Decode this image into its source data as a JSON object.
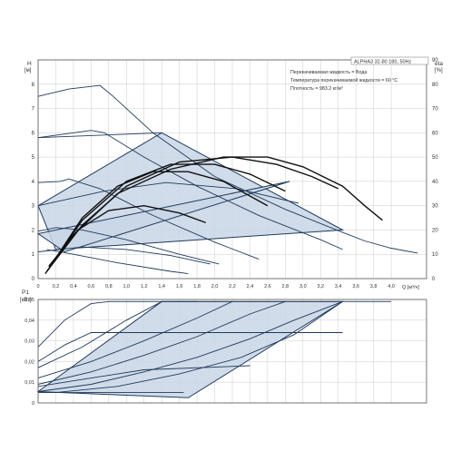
{
  "colors": {
    "curve": "#1f3a5c",
    "fill": "#c9d6e6",
    "grid": "#cccccc",
    "axis": "#555555",
    "bold": "#111111"
  },
  "info": {
    "model": "ALPHA3 32-80 180, 50Hz",
    "liquid": "Перекачиваемая жидкость = Вода",
    "temp": "Температура перекачиваемой жидкости = 60 °C",
    "density": "Плотность = 983.2 кг/м³"
  },
  "chart_data": [
    {
      "type": "line",
      "panel": "head-efficiency",
      "ylabel_top": "H",
      "ylabel_unit": "[м]",
      "y2label_top": "eta",
      "y2label_unit": "[%]",
      "xlabel": "Q [м³/ч]",
      "xlim": [
        0,
        4.4
      ],
      "ylim": [
        0,
        9
      ],
      "y2lim": [
        0,
        90
      ],
      "grid": true,
      "x_ticks": [
        "0",
        "0,2",
        "0,4",
        "0,6",
        "0,8",
        "1,0",
        "1,2",
        "1,4",
        "1,6",
        "1,8",
        "2,0",
        "2,2",
        "2,4",
        "2,6",
        "2,8",
        "3,0",
        "3,2",
        "3,4",
        "3,6",
        "3,8",
        "4,0"
      ],
      "y_ticks": [
        "0",
        "1",
        "2",
        "3",
        "4",
        "5",
        "6",
        "7",
        "8"
      ],
      "y2_ticks": [
        "0",
        "10",
        "20",
        "30",
        "40",
        "50",
        "60",
        "70",
        "80",
        "90"
      ],
      "regions": [
        {
          "points": [
            [
              0,
              3.0
            ],
            [
              1.4,
              6.0
            ],
            [
              3.45,
              2.0
            ],
            [
              0.2,
              1.2
            ]
          ]
        },
        {
          "points": [
            [
              0,
              1.85
            ],
            [
              2.85,
              4.0
            ],
            [
              0.3,
              1.1
            ]
          ]
        }
      ],
      "series": [
        {
          "x": [
            0,
            0.35,
            0.7,
            0.85,
            1.3,
            2.0,
            2.8,
            3.45,
            3.7,
            4.0,
            4.3
          ],
          "y": [
            7.5,
            7.8,
            7.95,
            7.5,
            6.0,
            4.2,
            2.85,
            1.9,
            1.55,
            1.25,
            1.05
          ]
        },
        {
          "x": [
            0,
            0.6,
            0.75,
            1.2,
            1.8,
            2.5,
            3.2,
            3.45
          ],
          "y": [
            5.8,
            6.1,
            6.0,
            5.0,
            3.8,
            2.6,
            1.6,
            1.2
          ]
        },
        {
          "x": [
            0,
            0.25,
            0.35,
            0.7,
            1.3,
            2.0,
            2.5
          ],
          "y": [
            3.95,
            4.0,
            4.1,
            3.7,
            2.6,
            1.5,
            0.8
          ]
        },
        {
          "x": [
            0,
            0.2,
            0.5,
            1.0,
            1.6,
            2.05
          ],
          "y": [
            1.95,
            2.1,
            2.0,
            1.6,
            1.0,
            0.6
          ]
        },
        {
          "x": [
            0,
            1.4
          ],
          "y": [
            5.8,
            6.0
          ]
        },
        {
          "x": [
            0,
            0.75,
            1.45,
            2.25,
            2.95
          ],
          "y": [
            3.0,
            3.6,
            3.95,
            3.7,
            3.1
          ]
        },
        {
          "x": [
            0,
            0.5,
            1.0,
            1.5,
            1.95
          ],
          "y": [
            1.1,
            1.3,
            1.2,
            0.95,
            0.6
          ]
        },
        {
          "x": [
            0.1,
            0.4,
            0.9,
            1.5,
            1.7
          ],
          "y": [
            1.2,
            1.0,
            0.65,
            0.3,
            0.2
          ]
        }
      ],
      "efficiency_series": [
        {
          "x": [
            0.08,
            0.4,
            0.9,
            1.5,
            2.1,
            2.6,
            3.0,
            3.45,
            3.7,
            3.9
          ],
          "eta": [
            2,
            18,
            35,
            45,
            50,
            50,
            46,
            38,
            30,
            24
          ]
        },
        {
          "x": [
            0.1,
            0.5,
            1.0,
            1.6,
            2.2,
            2.7,
            3.1,
            3.4
          ],
          "eta": [
            3,
            22,
            38,
            48,
            50,
            47,
            42,
            37
          ]
        },
        {
          "x": [
            0.1,
            0.5,
            1.0,
            1.5,
            2.0,
            2.4,
            2.8
          ],
          "eta": [
            3,
            24,
            40,
            47,
            47,
            43,
            36
          ]
        },
        {
          "x": [
            0.12,
            0.5,
            0.9,
            1.3,
            1.7,
            2.1,
            2.6
          ],
          "eta": [
            4,
            25,
            38,
            44,
            44,
            40,
            30
          ]
        },
        {
          "x": [
            0.12,
            0.45,
            0.8,
            1.2,
            1.6,
            1.9
          ],
          "eta": [
            5,
            20,
            28,
            30,
            27,
            23
          ]
        }
      ]
    },
    {
      "type": "line",
      "panel": "power",
      "ylabel_top": "P1",
      "ylabel_unit": "[кВт]",
      "xlim": [
        0,
        4.4
      ],
      "ylim": [
        0,
        0.05
      ],
      "grid": true,
      "y_ticks": [
        "0",
        "0,01",
        "0,02",
        "0,03",
        "0,04",
        "0,05"
      ],
      "regions": [
        {
          "points": [
            [
              0,
              0.0055
            ],
            [
              1.4,
              0.049
            ],
            [
              3.45,
              0.049
            ],
            [
              1.7,
              0.0025
            ]
          ]
        }
      ],
      "series": [
        {
          "x": [
            0,
            0.3,
            0.6,
            0.8,
            3.45,
            4.0
          ],
          "y": [
            0.027,
            0.04,
            0.048,
            0.049,
            0.049,
            0.049
          ]
        },
        {
          "x": [
            0,
            0.5,
            1.0,
            1.4,
            1.8
          ],
          "y": [
            0.017,
            0.027,
            0.04,
            0.049,
            0.049
          ]
        },
        {
          "x": [
            0,
            0.3,
            0.6,
            1.2,
            3.45
          ],
          "y": [
            0.02,
            0.028,
            0.034,
            0.034,
            0.034
          ]
        },
        {
          "x": [
            0,
            0.6,
            1.2,
            2.4
          ],
          "y": [
            0.008,
            0.012,
            0.016,
            0.018
          ]
        },
        {
          "x": [
            0,
            0.6,
            1.65
          ],
          "y": [
            0.005,
            0.005,
            0.005
          ]
        },
        {
          "x": [
            0,
            0.6,
            1.2,
            1.8,
            2.4,
            2.9,
            3.45
          ],
          "y": [
            0.0055,
            0.009,
            0.015,
            0.022,
            0.031,
            0.04,
            0.049
          ]
        },
        {
          "x": [
            0,
            0.6,
            1.2,
            1.8,
            2.4,
            2.8
          ],
          "y": [
            0.009,
            0.015,
            0.023,
            0.032,
            0.043,
            0.049
          ]
        },
        {
          "x": [
            0,
            0.6,
            1.2,
            1.8,
            2.2
          ],
          "y": [
            0.012,
            0.02,
            0.03,
            0.041,
            0.049
          ]
        },
        {
          "x": [
            0.2,
            0.9,
            1.6,
            2.3,
            2.9,
            3.45
          ],
          "y": [
            0.005,
            0.008,
            0.014,
            0.022,
            0.033,
            0.049
          ]
        }
      ]
    }
  ]
}
